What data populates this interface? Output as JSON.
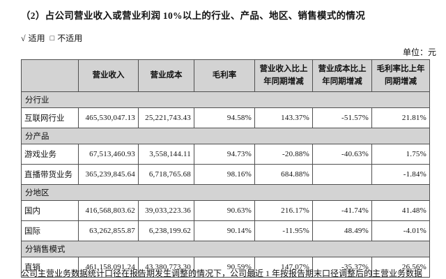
{
  "page": {
    "title": "（2）占公司营业收入或营业利润 10%以上的行业、产品、地区、销售模式的情况",
    "applicable": {
      "checked_symbol": "√",
      "applicable_label": "适用",
      "unchecked_symbol": "□",
      "not_applicable_label": "不适用"
    },
    "unit_label": "单位：元",
    "footnote": "公司主营业务数据统计口径在报告期发生调整的情况下，公司最近 1 年按报告期末口径调整后的主营业务数据"
  },
  "table": {
    "headers": [
      "",
      "营业收入",
      "营业成本",
      "毛利率",
      "营业收入比上年同期增减",
      "营业成本比上年同期增减",
      "毛利率比上年同期增减"
    ],
    "sections": [
      {
        "label": "分行业",
        "rows": [
          {
            "label": "互联网行业",
            "values": [
              "465,530,047.13",
              "25,221,743.43",
              "94.58%",
              "143.37%",
              "-51.57%",
              "21.81%"
            ]
          }
        ]
      },
      {
        "label": "分产品",
        "rows": [
          {
            "label": "游戏业务",
            "values": [
              "67,513,460.93",
              "3,558,144.11",
              "94.73%",
              "-20.88%",
              "-40.63%",
              "1.75%"
            ]
          },
          {
            "label": "直播带货业务",
            "values": [
              "365,239,845.64",
              "6,718,765.68",
              "98.16%",
              "684.88%",
              "",
              "-1.84%"
            ]
          }
        ]
      },
      {
        "label": "分地区",
        "rows": [
          {
            "label": "国内",
            "values": [
              "416,568,803.62",
              "39,033,223.36",
              "90.63%",
              "216.17%",
              "-41.74%",
              "41.48%"
            ]
          },
          {
            "label": "国际",
            "values": [
              "63,262,855.87",
              "6,238,199.62",
              "90.14%",
              "-11.95%",
              "48.49%",
              "-4.01%"
            ]
          }
        ]
      },
      {
        "label": "分销售模式",
        "rows": [
          {
            "label": "直销",
            "values": [
              "461,158,091.24",
              "43,380,773.30",
              "90.59%",
              "147.07%",
              "-35.37%",
              "26.56%"
            ]
          }
        ]
      }
    ]
  },
  "colors": {
    "header_bg": "#d3d3d3",
    "section_bg": "#d3d3d3",
    "border": "#4f4f4f",
    "text": "#111111"
  }
}
